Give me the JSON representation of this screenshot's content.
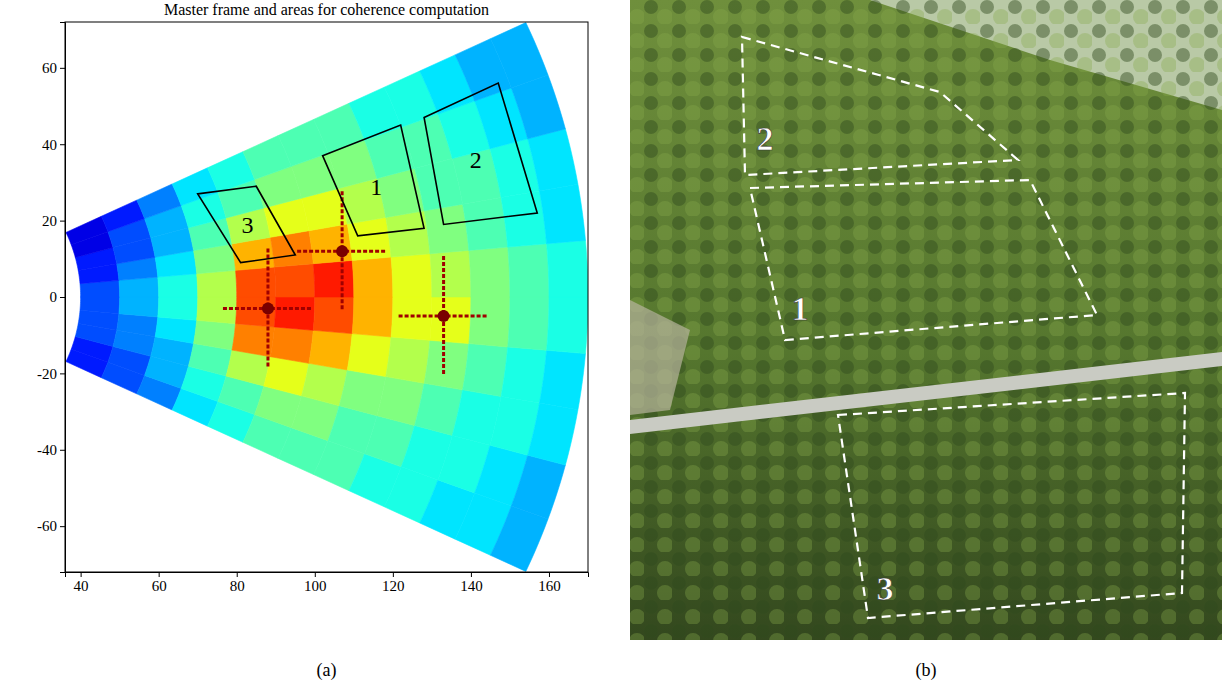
{
  "chart_data": {
    "type": "heatmap",
    "title": "Master frame and areas for coherence computation",
    "panel_label": "(a)",
    "xlim": [
      36,
      170
    ],
    "ylim": [
      -72,
      72
    ],
    "xticks": [
      40,
      60,
      80,
      100,
      120,
      140,
      160
    ],
    "yticks": [
      -60,
      -40,
      -20,
      0,
      20,
      40,
      60
    ],
    "grid": false,
    "range_edges": [
      40,
      50,
      60,
      70,
      80,
      90,
      100,
      110,
      120,
      130,
      140,
      150,
      160,
      170
    ],
    "angle_edges": [
      -25,
      -20,
      -15,
      -10,
      -5,
      0,
      5,
      10,
      15,
      20,
      25
    ],
    "color_range": [
      0,
      1
    ],
    "cells": [
      [
        0.15,
        0.2,
        0.25,
        0.35,
        0.4,
        0.45,
        0.45,
        0.45,
        0.4,
        0.4,
        0.35,
        0.35,
        0.3
      ],
      [
        0.15,
        0.2,
        0.3,
        0.4,
        0.45,
        0.5,
        0.5,
        0.45,
        0.45,
        0.4,
        0.4,
        0.35,
        0.3
      ],
      [
        0.2,
        0.25,
        0.3,
        0.45,
        0.55,
        0.6,
        0.55,
        0.5,
        0.5,
        0.45,
        0.4,
        0.4,
        0.35
      ],
      [
        0.2,
        0.25,
        0.35,
        0.5,
        0.75,
        0.75,
        0.7,
        0.6,
        0.55,
        0.5,
        0.45,
        0.4,
        0.35
      ],
      [
        0.2,
        0.3,
        0.4,
        0.55,
        0.8,
        0.85,
        0.8,
        0.7,
        0.6,
        0.6,
        0.5,
        0.45,
        0.4
      ],
      [
        0.2,
        0.3,
        0.4,
        0.55,
        0.8,
        0.8,
        0.85,
        0.7,
        0.6,
        0.55,
        0.5,
        0.45,
        0.4
      ],
      [
        0.15,
        0.25,
        0.35,
        0.5,
        0.7,
        0.75,
        0.7,
        0.6,
        0.55,
        0.5,
        0.45,
        0.4,
        0.35
      ],
      [
        0.15,
        0.2,
        0.3,
        0.45,
        0.55,
        0.6,
        0.6,
        0.55,
        0.5,
        0.45,
        0.45,
        0.4,
        0.35
      ],
      [
        0.1,
        0.2,
        0.3,
        0.4,
        0.45,
        0.5,
        0.5,
        0.5,
        0.45,
        0.45,
        0.4,
        0.35,
        0.3
      ],
      [
        0.1,
        0.15,
        0.25,
        0.35,
        0.4,
        0.45,
        0.45,
        0.45,
        0.4,
        0.4,
        0.35,
        0.3,
        0.3
      ]
    ],
    "targets": {
      "x": [
        107,
        133,
        88
      ],
      "y": [
        12,
        -5,
        -3
      ]
    },
    "regions": [
      {
        "label": "1",
        "x": [
          102,
          122,
          128,
          111
        ],
        "y": [
          37,
          45,
          18,
          16
        ]
      },
      {
        "label": "2",
        "x": [
          128,
          147,
          157,
          133
        ],
        "y": [
          47,
          56,
          22,
          19
        ]
      },
      {
        "label": "3",
        "x": [
          70,
          85,
          95,
          81
        ],
        "y": [
          27,
          29,
          11,
          9
        ]
      }
    ]
  },
  "photo": {
    "panel_label": "(b)",
    "regions": [
      "1",
      "2",
      "3"
    ]
  }
}
